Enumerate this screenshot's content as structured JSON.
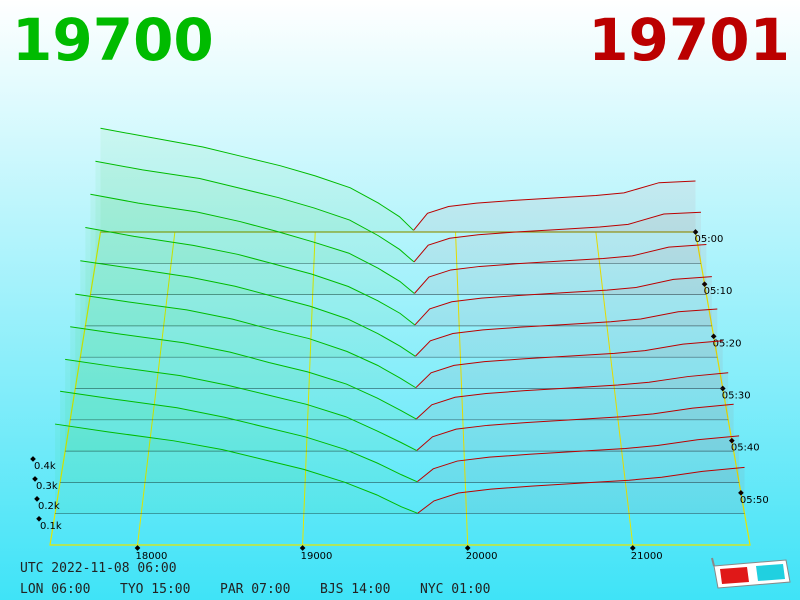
{
  "chart_data": {
    "type": "depth3d",
    "bid": 19700,
    "ask": 19701,
    "bid_color": "#00bb00",
    "ask_color": "#bb0000",
    "xlim": [
      17470,
      21710
    ],
    "xticks": [
      18000,
      19000,
      20000,
      21000
    ],
    "yticks": [
      {
        "value": 100,
        "label": "0.1k"
      },
      {
        "value": 200,
        "label": "0.2k"
      },
      {
        "value": 300,
        "label": "0.3k"
      },
      {
        "value": 400,
        "label": "0.4k"
      }
    ],
    "zlim": [
      300,
      360
    ],
    "zticks": [
      {
        "value": 300,
        "label": "05:00"
      },
      {
        "value": 310,
        "label": "05:10"
      },
      {
        "value": 320,
        "label": "05:20"
      },
      {
        "value": 330,
        "label": "05:30"
      },
      {
        "value": 340,
        "label": "05:40"
      },
      {
        "value": 350,
        "label": "05:50"
      }
    ],
    "times": [
      300,
      306,
      312,
      318,
      324,
      330,
      336,
      342,
      348,
      354
    ],
    "bid_prices": [
      19700,
      19600,
      19450,
      19250,
      19000,
      18750,
      18500,
      18200,
      17800,
      17470
    ],
    "bid_depths": [
      [
        10,
        90,
        170,
        260,
        330,
        390,
        440,
        500,
        560,
        610
      ],
      [
        8,
        80,
        160,
        250,
        320,
        380,
        430,
        490,
        540,
        590
      ],
      [
        6,
        75,
        150,
        235,
        300,
        360,
        415,
        470,
        520,
        570
      ],
      [
        5,
        70,
        140,
        220,
        290,
        345,
        400,
        450,
        500,
        550
      ],
      [
        5,
        60,
        130,
        210,
        280,
        335,
        390,
        440,
        490,
        530
      ],
      [
        4,
        55,
        125,
        200,
        270,
        320,
        375,
        425,
        470,
        510
      ],
      [
        4,
        50,
        115,
        190,
        255,
        305,
        360,
        410,
        455,
        495
      ],
      [
        3,
        45,
        105,
        180,
        245,
        295,
        345,
        395,
        440,
        480
      ],
      [
        3,
        40,
        100,
        170,
        235,
        285,
        335,
        385,
        430,
        470
      ],
      [
        2,
        35,
        95,
        160,
        225,
        275,
        325,
        370,
        415,
        455
      ]
    ],
    "ask_prices": [
      19701,
      19800,
      19950,
      20150,
      20400,
      20700,
      21000,
      21200,
      21450,
      21710
    ],
    "ask_depths": [
      [
        10,
        110,
        150,
        170,
        185,
        200,
        215,
        230,
        290,
        300
      ],
      [
        8,
        105,
        145,
        165,
        180,
        195,
        210,
        225,
        285,
        295
      ],
      [
        7,
        100,
        140,
        160,
        175,
        190,
        205,
        220,
        270,
        285
      ],
      [
        6,
        95,
        135,
        155,
        170,
        185,
        200,
        215,
        260,
        275
      ],
      [
        6,
        90,
        130,
        150,
        165,
        180,
        195,
        210,
        250,
        265
      ],
      [
        5,
        85,
        125,
        145,
        160,
        175,
        190,
        205,
        240,
        258
      ],
      [
        5,
        80,
        120,
        140,
        155,
        170,
        185,
        200,
        230,
        250
      ],
      [
        4,
        75,
        115,
        135,
        150,
        165,
        180,
        195,
        225,
        245
      ],
      [
        4,
        70,
        110,
        130,
        145,
        160,
        175,
        190,
        220,
        240
      ],
      [
        3,
        65,
        105,
        125,
        140,
        155,
        170,
        185,
        215,
        235
      ]
    ]
  },
  "footer": {
    "utc": "UTC 2022-11-08 06:00",
    "clocks": [
      "LON 06:00",
      "TYO 15:00",
      "PAR 07:00",
      "BJS 14:00",
      "NYC 01:00"
    ]
  }
}
